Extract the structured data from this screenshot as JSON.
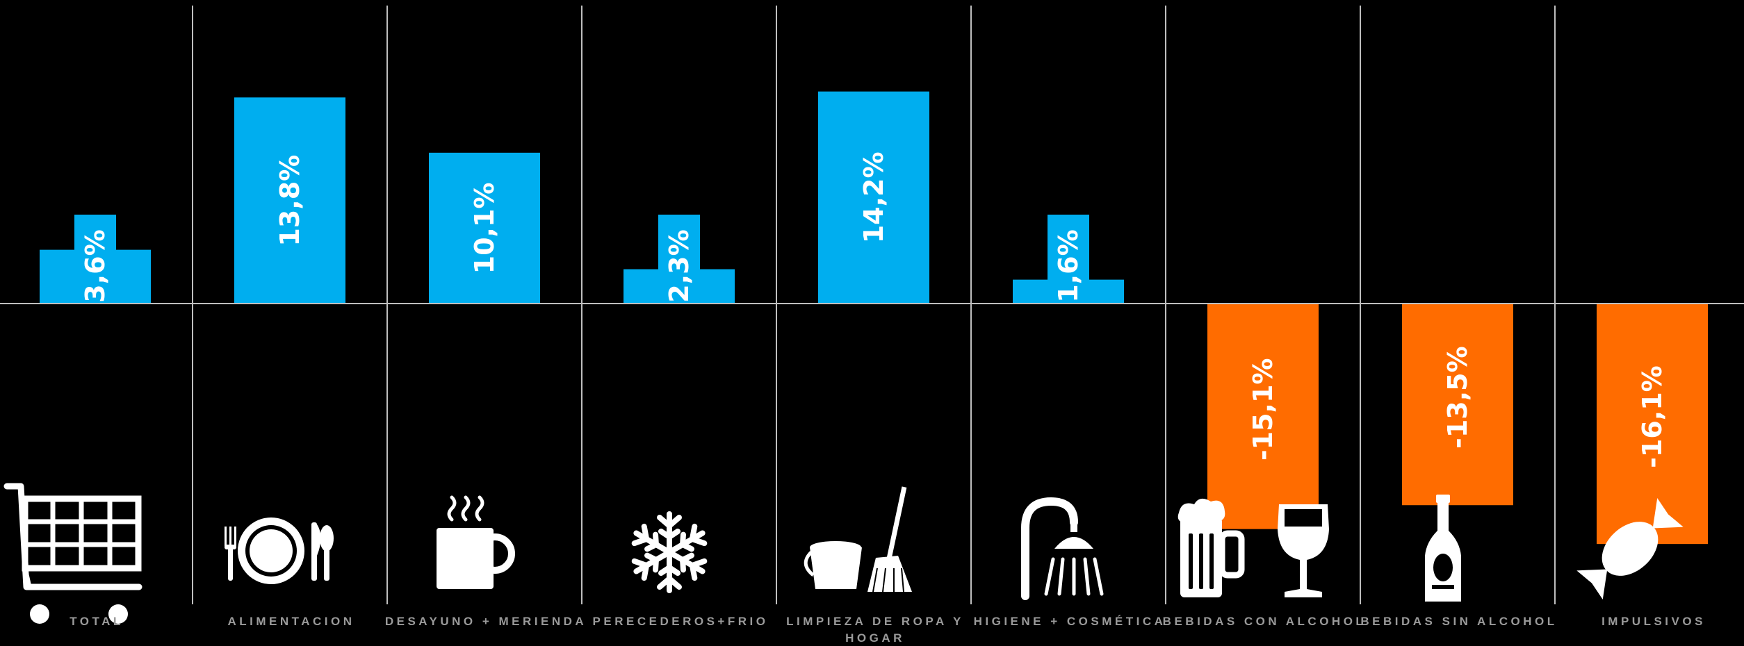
{
  "chart_data": {
    "type": "bar",
    "categories": [
      "TOTAL",
      "ALIMENTACION",
      "DESAYUNO + MERIENDA",
      "PERECEDEROS+FRIO",
      "LIMPIEZA DE ROPA Y HOGAR",
      "HIGIENE + COSMÉTICA",
      "BEBIDAS CON ALCOHOL",
      "BEBIDAS SIN ALCOHOL",
      "IMPULSIVOS"
    ],
    "values": [
      3.6,
      13.8,
      10.1,
      2.3,
      14.2,
      1.6,
      -15.1,
      -13.5,
      -16.1
    ],
    "labels": [
      "3,6%",
      "13,8%",
      "10,1%",
      "2,3%",
      "14,2%",
      "1,6%",
      "-15,1%",
      "-13,5%",
      "-16,1%"
    ],
    "category_lines": [
      [
        "TOTAL"
      ],
      [
        "ALIMENTACION"
      ],
      [
        "DESAYUNO + MERIENDA"
      ],
      [
        "PERECEDEROS+FRIO"
      ],
      [
        "LIMPIEZA DE ROPA Y",
        "HOGAR"
      ],
      [
        "HIGIENE + COSMÉTICA"
      ],
      [
        "BEBIDAS CON ALCOHOL"
      ],
      [
        "BEBIDAS SIN ALCOHOL"
      ],
      [
        "IMPULSIVOS"
      ]
    ],
    "icons": [
      "shopping-cart-icon",
      "plate-cutlery-icon",
      "coffee-mug-icon",
      "snowflake-icon",
      "bucket-broom-icon",
      "shower-icon",
      "beer-wine-icon",
      "bottle-icon",
      "candy-icon"
    ],
    "colors": {
      "positive": "#00AEEF",
      "negative": "#FF6C00",
      "background": "#000000",
      "label": "#9A9A9A",
      "grid": "#BFBFBF"
    },
    "grid": true
  }
}
